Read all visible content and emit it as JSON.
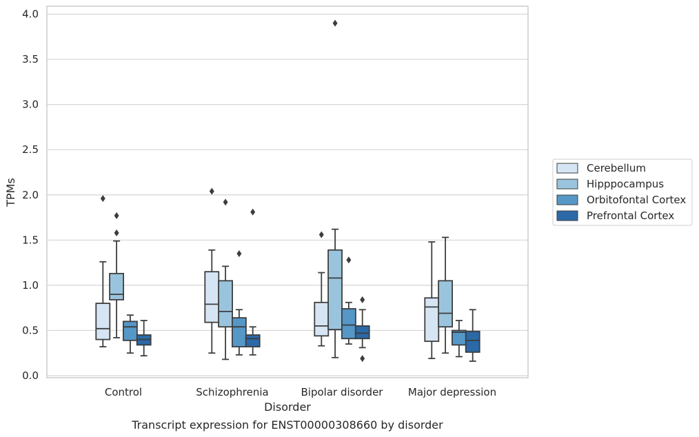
{
  "chart_data": {
    "type": "box",
    "title": "",
    "caption": "Transcript expression for ENST00000308660 by disorder",
    "xlabel": "Disorder",
    "ylabel": "TPMs",
    "ylim": [
      0,
      4.08
    ],
    "yticks": [
      "0.0",
      "0.5",
      "1.0",
      "1.5",
      "2.0",
      "2.5",
      "3.0",
      "3.5",
      "4.0"
    ],
    "grid": "horizontal",
    "legend_position": "right",
    "categories": [
      "Control",
      "Schizophrenia",
      "Bipolar disorder",
      "Major depression"
    ],
    "series": [
      {
        "name": "Cerebellum",
        "color": "#d6e5f4",
        "boxes": [
          {
            "whisker_low": 0.32,
            "q1": 0.4,
            "median": 0.52,
            "q3": 0.8,
            "whisker_high": 1.26,
            "outliers": [
              1.96
            ]
          },
          {
            "whisker_low": 0.25,
            "q1": 0.59,
            "median": 0.79,
            "q3": 1.15,
            "whisker_high": 1.39,
            "outliers": [
              2.04
            ]
          },
          {
            "whisker_low": 0.33,
            "q1": 0.44,
            "median": 0.55,
            "q3": 0.81,
            "whisker_high": 1.14,
            "outliers": [
              1.56
            ]
          },
          {
            "whisker_low": 0.19,
            "q1": 0.38,
            "median": 0.76,
            "q3": 0.86,
            "whisker_high": 1.48,
            "outliers": []
          }
        ]
      },
      {
        "name": "Hipppocampus",
        "color": "#9ac4dd",
        "boxes": [
          {
            "whisker_low": 0.42,
            "q1": 0.84,
            "median": 0.9,
            "q3": 1.13,
            "whisker_high": 1.49,
            "outliers": [
              1.58,
              1.77
            ]
          },
          {
            "whisker_low": 0.18,
            "q1": 0.54,
            "median": 0.71,
            "q3": 1.05,
            "whisker_high": 1.21,
            "outliers": [
              1.92
            ]
          },
          {
            "whisker_low": 0.2,
            "q1": 0.51,
            "median": 1.08,
            "q3": 1.39,
            "whisker_high": 1.62,
            "outliers": [
              3.9
            ]
          },
          {
            "whisker_low": 0.25,
            "q1": 0.54,
            "median": 0.69,
            "q3": 1.05,
            "whisker_high": 1.53,
            "outliers": []
          }
        ]
      },
      {
        "name": "Orbitofontal Cortex",
        "color": "#5597c7",
        "boxes": [
          {
            "whisker_low": 0.25,
            "q1": 0.39,
            "median": 0.54,
            "q3": 0.6,
            "whisker_high": 0.67,
            "outliers": []
          },
          {
            "whisker_low": 0.23,
            "q1": 0.32,
            "median": 0.54,
            "q3": 0.64,
            "whisker_high": 0.73,
            "outliers": [
              1.35
            ]
          },
          {
            "whisker_low": 0.35,
            "q1": 0.41,
            "median": 0.56,
            "q3": 0.74,
            "whisker_high": 0.81,
            "outliers": [
              1.28
            ]
          },
          {
            "whisker_low": 0.21,
            "q1": 0.34,
            "median": 0.48,
            "q3": 0.5,
            "whisker_high": 0.61,
            "outliers": []
          }
        ]
      },
      {
        "name": "Prefrontal Cortex",
        "color": "#2b69a7",
        "boxes": [
          {
            "whisker_low": 0.22,
            "q1": 0.34,
            "median": 0.4,
            "q3": 0.45,
            "whisker_high": 0.61,
            "outliers": []
          },
          {
            "whisker_low": 0.23,
            "q1": 0.32,
            "median": 0.41,
            "q3": 0.45,
            "whisker_high": 0.54,
            "outliers": [
              1.81
            ]
          },
          {
            "whisker_low": 0.31,
            "q1": 0.41,
            "median": 0.47,
            "q3": 0.55,
            "whisker_high": 0.73,
            "outliers": [
              0.19,
              0.84
            ]
          },
          {
            "whisker_low": 0.16,
            "q1": 0.26,
            "median": 0.39,
            "q3": 0.49,
            "whisker_high": 0.73,
            "outliers": []
          }
        ]
      }
    ]
  }
}
